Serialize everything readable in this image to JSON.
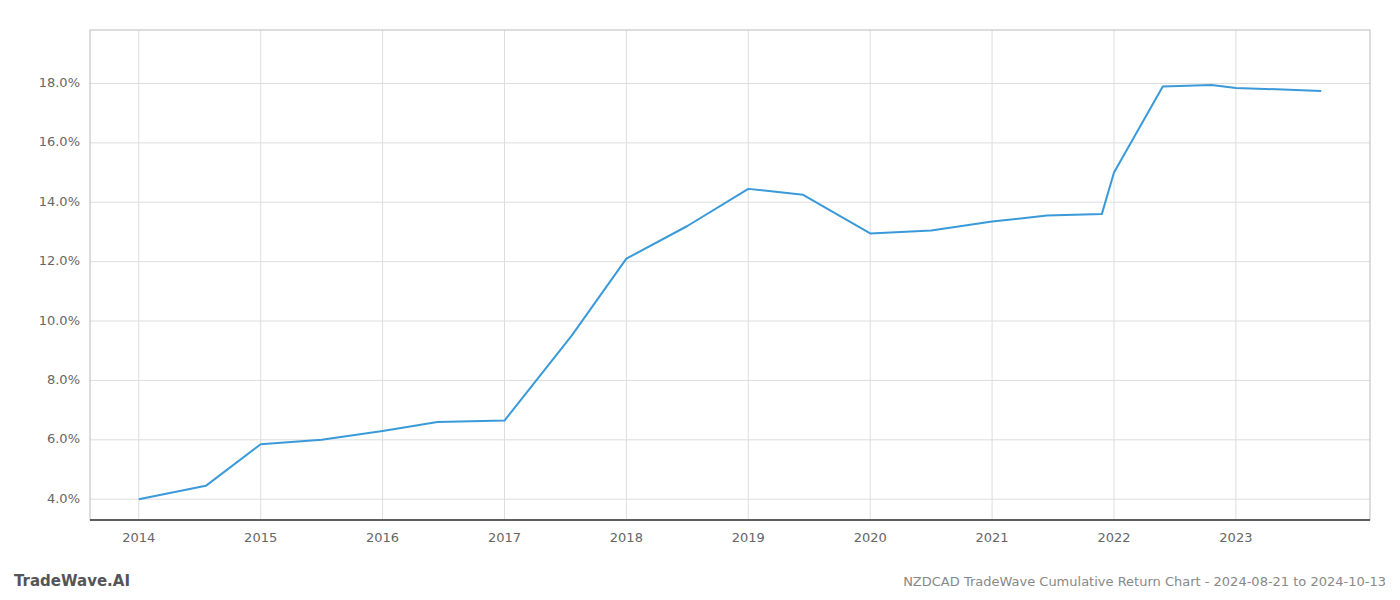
{
  "chart_data": {
    "type": "line",
    "title": "NZDCAD TradeWave Cumulative Return Chart - 2024-08-21 to 2024-10-13",
    "annotations": [
      "TradeWave.AI"
    ],
    "x": [
      2014.0,
      2014.55,
      2015.0,
      2015.5,
      2016.0,
      2016.45,
      2017.0,
      2017.55,
      2018.0,
      2018.5,
      2019.0,
      2019.45,
      2020.0,
      2020.5,
      2021.0,
      2021.45,
      2021.9,
      2022.0,
      2022.4,
      2022.8,
      2023.0,
      2023.7
    ],
    "values": [
      4.0,
      4.45,
      5.85,
      6.0,
      6.3,
      6.6,
      6.65,
      9.5,
      12.1,
      13.2,
      14.45,
      14.25,
      12.95,
      13.05,
      13.35,
      13.55,
      13.6,
      15.0,
      17.9,
      17.95,
      17.85,
      17.75
    ],
    "color": "#3a9ad9",
    "xlim": [
      2013.6,
      2024.1
    ],
    "ylim": [
      3.3,
      19.8
    ],
    "xticks": [
      2014,
      2015,
      2016,
      2017,
      2018,
      2019,
      2020,
      2021,
      2022,
      2023
    ],
    "yticks": [
      {
        "value": 4.0,
        "label": "4.0%"
      },
      {
        "value": 6.0,
        "label": "6.0%"
      },
      {
        "value": 8.0,
        "label": "8.0%"
      },
      {
        "value": 10.0,
        "label": "10.0%"
      },
      {
        "value": 12.0,
        "label": "12.0%"
      },
      {
        "value": 14.0,
        "label": "14.0%"
      },
      {
        "value": 16.0,
        "label": "16.0%"
      },
      {
        "value": 18.0,
        "label": "18.0%"
      }
    ],
    "grid": true
  }
}
